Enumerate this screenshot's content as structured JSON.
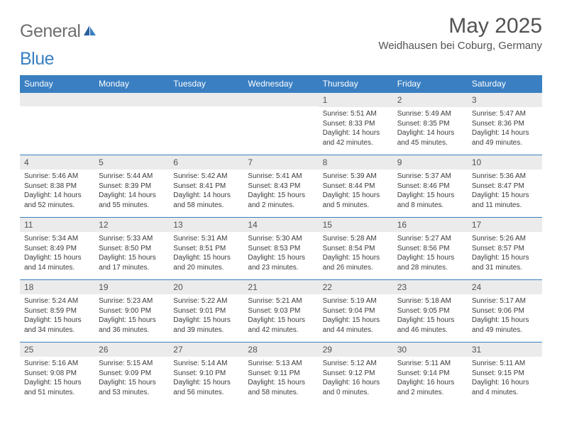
{
  "brand": {
    "part1": "General",
    "part2": "Blue"
  },
  "title": "May 2025",
  "location": "Weidhausen bei Coburg, Germany",
  "colors": {
    "headerBlue": "#3a7fc2",
    "rowGray": "#ebebeb",
    "textGray": "#525252",
    "bodyText": "#3b3b3b",
    "white": "#ffffff"
  },
  "dayNames": [
    "Sunday",
    "Monday",
    "Tuesday",
    "Wednesday",
    "Thursday",
    "Friday",
    "Saturday"
  ],
  "weeks": [
    [
      {
        "n": "",
        "lines": [
          "",
          "",
          "",
          ""
        ]
      },
      {
        "n": "",
        "lines": [
          "",
          "",
          "",
          ""
        ]
      },
      {
        "n": "",
        "lines": [
          "",
          "",
          "",
          ""
        ]
      },
      {
        "n": "",
        "lines": [
          "",
          "",
          "",
          ""
        ]
      },
      {
        "n": "1",
        "lines": [
          "Sunrise: 5:51 AM",
          "Sunset: 8:33 PM",
          "Daylight: 14 hours",
          "and 42 minutes."
        ]
      },
      {
        "n": "2",
        "lines": [
          "Sunrise: 5:49 AM",
          "Sunset: 8:35 PM",
          "Daylight: 14 hours",
          "and 45 minutes."
        ]
      },
      {
        "n": "3",
        "lines": [
          "Sunrise: 5:47 AM",
          "Sunset: 8:36 PM",
          "Daylight: 14 hours",
          "and 49 minutes."
        ]
      }
    ],
    [
      {
        "n": "4",
        "lines": [
          "Sunrise: 5:46 AM",
          "Sunset: 8:38 PM",
          "Daylight: 14 hours",
          "and 52 minutes."
        ]
      },
      {
        "n": "5",
        "lines": [
          "Sunrise: 5:44 AM",
          "Sunset: 8:39 PM",
          "Daylight: 14 hours",
          "and 55 minutes."
        ]
      },
      {
        "n": "6",
        "lines": [
          "Sunrise: 5:42 AM",
          "Sunset: 8:41 PM",
          "Daylight: 14 hours",
          "and 58 minutes."
        ]
      },
      {
        "n": "7",
        "lines": [
          "Sunrise: 5:41 AM",
          "Sunset: 8:43 PM",
          "Daylight: 15 hours",
          "and 2 minutes."
        ]
      },
      {
        "n": "8",
        "lines": [
          "Sunrise: 5:39 AM",
          "Sunset: 8:44 PM",
          "Daylight: 15 hours",
          "and 5 minutes."
        ]
      },
      {
        "n": "9",
        "lines": [
          "Sunrise: 5:37 AM",
          "Sunset: 8:46 PM",
          "Daylight: 15 hours",
          "and 8 minutes."
        ]
      },
      {
        "n": "10",
        "lines": [
          "Sunrise: 5:36 AM",
          "Sunset: 8:47 PM",
          "Daylight: 15 hours",
          "and 11 minutes."
        ]
      }
    ],
    [
      {
        "n": "11",
        "lines": [
          "Sunrise: 5:34 AM",
          "Sunset: 8:49 PM",
          "Daylight: 15 hours",
          "and 14 minutes."
        ]
      },
      {
        "n": "12",
        "lines": [
          "Sunrise: 5:33 AM",
          "Sunset: 8:50 PM",
          "Daylight: 15 hours",
          "and 17 minutes."
        ]
      },
      {
        "n": "13",
        "lines": [
          "Sunrise: 5:31 AM",
          "Sunset: 8:51 PM",
          "Daylight: 15 hours",
          "and 20 minutes."
        ]
      },
      {
        "n": "14",
        "lines": [
          "Sunrise: 5:30 AM",
          "Sunset: 8:53 PM",
          "Daylight: 15 hours",
          "and 23 minutes."
        ]
      },
      {
        "n": "15",
        "lines": [
          "Sunrise: 5:28 AM",
          "Sunset: 8:54 PM",
          "Daylight: 15 hours",
          "and 26 minutes."
        ]
      },
      {
        "n": "16",
        "lines": [
          "Sunrise: 5:27 AM",
          "Sunset: 8:56 PM",
          "Daylight: 15 hours",
          "and 28 minutes."
        ]
      },
      {
        "n": "17",
        "lines": [
          "Sunrise: 5:26 AM",
          "Sunset: 8:57 PM",
          "Daylight: 15 hours",
          "and 31 minutes."
        ]
      }
    ],
    [
      {
        "n": "18",
        "lines": [
          "Sunrise: 5:24 AM",
          "Sunset: 8:59 PM",
          "Daylight: 15 hours",
          "and 34 minutes."
        ]
      },
      {
        "n": "19",
        "lines": [
          "Sunrise: 5:23 AM",
          "Sunset: 9:00 PM",
          "Daylight: 15 hours",
          "and 36 minutes."
        ]
      },
      {
        "n": "20",
        "lines": [
          "Sunrise: 5:22 AM",
          "Sunset: 9:01 PM",
          "Daylight: 15 hours",
          "and 39 minutes."
        ]
      },
      {
        "n": "21",
        "lines": [
          "Sunrise: 5:21 AM",
          "Sunset: 9:03 PM",
          "Daylight: 15 hours",
          "and 42 minutes."
        ]
      },
      {
        "n": "22",
        "lines": [
          "Sunrise: 5:19 AM",
          "Sunset: 9:04 PM",
          "Daylight: 15 hours",
          "and 44 minutes."
        ]
      },
      {
        "n": "23",
        "lines": [
          "Sunrise: 5:18 AM",
          "Sunset: 9:05 PM",
          "Daylight: 15 hours",
          "and 46 minutes."
        ]
      },
      {
        "n": "24",
        "lines": [
          "Sunrise: 5:17 AM",
          "Sunset: 9:06 PM",
          "Daylight: 15 hours",
          "and 49 minutes."
        ]
      }
    ],
    [
      {
        "n": "25",
        "lines": [
          "Sunrise: 5:16 AM",
          "Sunset: 9:08 PM",
          "Daylight: 15 hours",
          "and 51 minutes."
        ]
      },
      {
        "n": "26",
        "lines": [
          "Sunrise: 5:15 AM",
          "Sunset: 9:09 PM",
          "Daylight: 15 hours",
          "and 53 minutes."
        ]
      },
      {
        "n": "27",
        "lines": [
          "Sunrise: 5:14 AM",
          "Sunset: 9:10 PM",
          "Daylight: 15 hours",
          "and 56 minutes."
        ]
      },
      {
        "n": "28",
        "lines": [
          "Sunrise: 5:13 AM",
          "Sunset: 9:11 PM",
          "Daylight: 15 hours",
          "and 58 minutes."
        ]
      },
      {
        "n": "29",
        "lines": [
          "Sunrise: 5:12 AM",
          "Sunset: 9:12 PM",
          "Daylight: 16 hours",
          "and 0 minutes."
        ]
      },
      {
        "n": "30",
        "lines": [
          "Sunrise: 5:11 AM",
          "Sunset: 9:14 PM",
          "Daylight: 16 hours",
          "and 2 minutes."
        ]
      },
      {
        "n": "31",
        "lines": [
          "Sunrise: 5:11 AM",
          "Sunset: 9:15 PM",
          "Daylight: 16 hours",
          "and 4 minutes."
        ]
      }
    ]
  ]
}
